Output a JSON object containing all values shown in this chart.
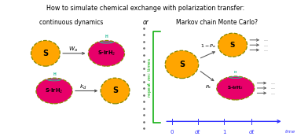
{
  "title_line1": "How to simulate chemical exchange with polarization transfer:",
  "title_line2_left": "continuous dynamics",
  "title_line2_or": "or",
  "title_line2_right": "Markov chain Monte Carlo?",
  "yellow_color": "#FFA500",
  "pink_color": "#E8006A",
  "teal_color": "#2DBB9A",
  "green_color": "#00AA00",
  "blue_color": "#3333FF",
  "dark_gray": "#555555",
  "olive": "#888800",
  "bg_color": "#FFFFFF",
  "figw": 3.78,
  "figh": 1.78,
  "dpi": 100
}
